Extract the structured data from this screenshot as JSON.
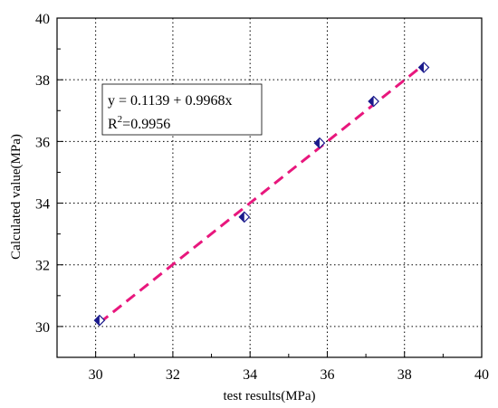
{
  "chart_data": {
    "type": "scatter",
    "xlabel": "test results(MPa)",
    "ylabel": "Calculated value(MPa)",
    "xlim": [
      29,
      40
    ],
    "ylim": [
      29,
      40
    ],
    "x_ticks": [
      30,
      32,
      34,
      36,
      38,
      40
    ],
    "y_ticks": [
      30,
      32,
      34,
      36,
      38,
      40
    ],
    "x_tick_labels": [
      "30",
      "32",
      "34",
      "36",
      "38",
      "40"
    ],
    "y_tick_labels": [
      "30",
      "32",
      "34",
      "36",
      "38",
      "40"
    ],
    "grid": true,
    "series": [
      {
        "marker": "diamond",
        "points": [
          {
            "x": 30.1,
            "y": 30.2
          },
          {
            "x": 33.85,
            "y": 33.55
          },
          {
            "x": 35.8,
            "y": 35.95
          },
          {
            "x": 37.2,
            "y": 37.3
          },
          {
            "x": 38.5,
            "y": 38.4
          }
        ]
      }
    ],
    "fit_line": {
      "style": "dashed",
      "intercept": 0.1139,
      "slope": 0.9968,
      "x_range": [
        30.1,
        38.5
      ]
    },
    "annotation": {
      "equation": "y = 0.1139 + 0.9968x",
      "r2_prefix": "R",
      "r2_sup": "2",
      "r2_value": "=0.9956"
    },
    "colors": {
      "marker_fill": "#1a1a8c",
      "marker_edge": "#1a1a8c",
      "fit_line": "#e8177d",
      "grid": "#000000",
      "axis": "#000000"
    }
  }
}
